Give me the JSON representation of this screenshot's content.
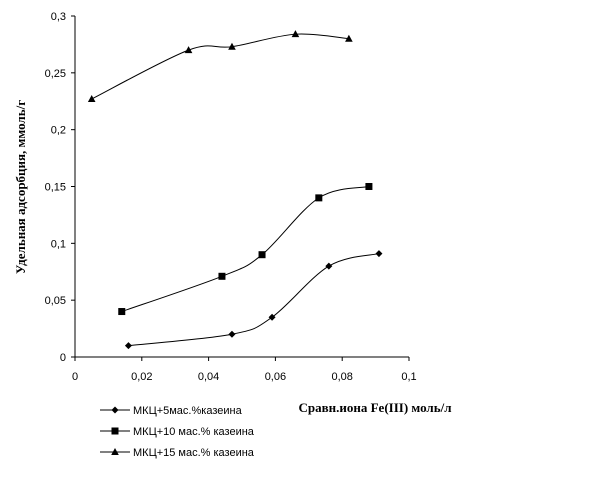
{
  "chart_data": {
    "type": "line",
    "title": "",
    "xlabel": "Сравн.иона Fe(III) моль/л",
    "ylabel": "Удельная адсорбция, ммоль/г",
    "xlim": [
      0,
      0.1
    ],
    "ylim": [
      0,
      0.3
    ],
    "x_ticks": [
      "0",
      "0,02",
      "0,04",
      "0,06",
      "0,08",
      "0,1"
    ],
    "y_ticks": [
      "0",
      "0,05",
      "0,1",
      "0,15",
      "0,2",
      "0,25",
      "0,3"
    ],
    "grid": false,
    "legend_position": "bottom-left",
    "series": [
      {
        "name": "МКЦ+5мас.%казеина",
        "marker": "diamond",
        "color": "#000000",
        "x": [
          0.016,
          0.047,
          0.059,
          0.076,
          0.091
        ],
        "y": [
          0.01,
          0.02,
          0.035,
          0.08,
          0.091
        ]
      },
      {
        "name": "МКЦ+10 мас.% казеина",
        "marker": "square",
        "color": "#000000",
        "x": [
          0.014,
          0.044,
          0.056,
          0.073,
          0.088
        ],
        "y": [
          0.04,
          0.071,
          0.09,
          0.14,
          0.15
        ]
      },
      {
        "name": "МКЦ+15 мас.% казеина",
        "marker": "triangle",
        "color": "#000000",
        "x": [
          0.005,
          0.034,
          0.047,
          0.066,
          0.082
        ],
        "y": [
          0.227,
          0.27,
          0.273,
          0.284,
          0.28
        ]
      }
    ]
  }
}
